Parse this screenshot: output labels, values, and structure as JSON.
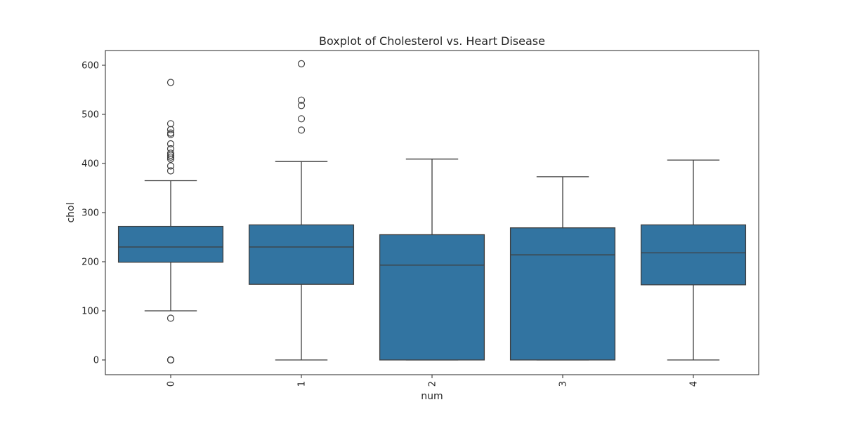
{
  "chart_data": {
    "type": "box",
    "title": "Boxplot of Cholesterol vs. Heart Disease",
    "xlabel": "num",
    "ylabel": "chol",
    "categories": [
      "0",
      "1",
      "2",
      "3",
      "4"
    ],
    "yticks": [
      0,
      100,
      200,
      300,
      400,
      500,
      600
    ],
    "ylim": [
      -30,
      630
    ],
    "grid": false,
    "legend": "none",
    "box_color": "#3274a1",
    "line_color": "#3f3f3f",
    "boxes": [
      {
        "category": "0",
        "whisker_low": 100,
        "q1": 199,
        "median": 230,
        "q3": 272,
        "whisker_high": 365,
        "outliers": [
          565,
          481,
          469,
          462,
          459,
          440,
          430,
          421,
          417,
          413,
          409,
          395,
          385,
          85,
          0,
          0,
          0
        ]
      },
      {
        "category": "1",
        "whisker_low": 0,
        "q1": 154,
        "median": 230,
        "q3": 275,
        "whisker_high": 404,
        "outliers": [
          603,
          529,
          518,
          491,
          468
        ]
      },
      {
        "category": "2",
        "whisker_low": 0,
        "q1": 0,
        "median": 193,
        "q3": 255,
        "whisker_high": 409,
        "outliers": []
      },
      {
        "category": "3",
        "whisker_low": 0,
        "q1": 0,
        "median": 214,
        "q3": 269,
        "whisker_high": 373,
        "outliers": []
      },
      {
        "category": "4",
        "whisker_low": 0,
        "q1": 153,
        "median": 218,
        "q3": 275,
        "whisker_high": 407,
        "outliers": []
      }
    ]
  }
}
